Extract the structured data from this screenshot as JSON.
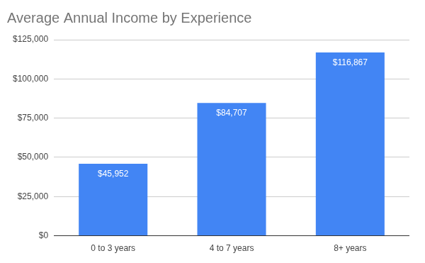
{
  "chart_data": {
    "type": "bar",
    "title": "Average Annual Income by Experience",
    "categories": [
      "0 to 3 years",
      "4 to 7 years",
      "8+ years"
    ],
    "values": [
      45952,
      84707,
      116867
    ],
    "value_labels": [
      "$45,952",
      "$84,707",
      "$116,867"
    ],
    "data_labels": true,
    "color": "#4285f4",
    "ylim": [
      0,
      125000
    ],
    "yticks": [
      {
        "value": 0,
        "label": "$0"
      },
      {
        "value": 25000,
        "label": "$25,000"
      },
      {
        "value": 50000,
        "label": "$50,000"
      },
      {
        "value": 75000,
        "label": "$75,000"
      },
      {
        "value": 100000,
        "label": "$100,000"
      },
      {
        "value": 125000,
        "label": "$125,000"
      }
    ],
    "grid": true
  }
}
